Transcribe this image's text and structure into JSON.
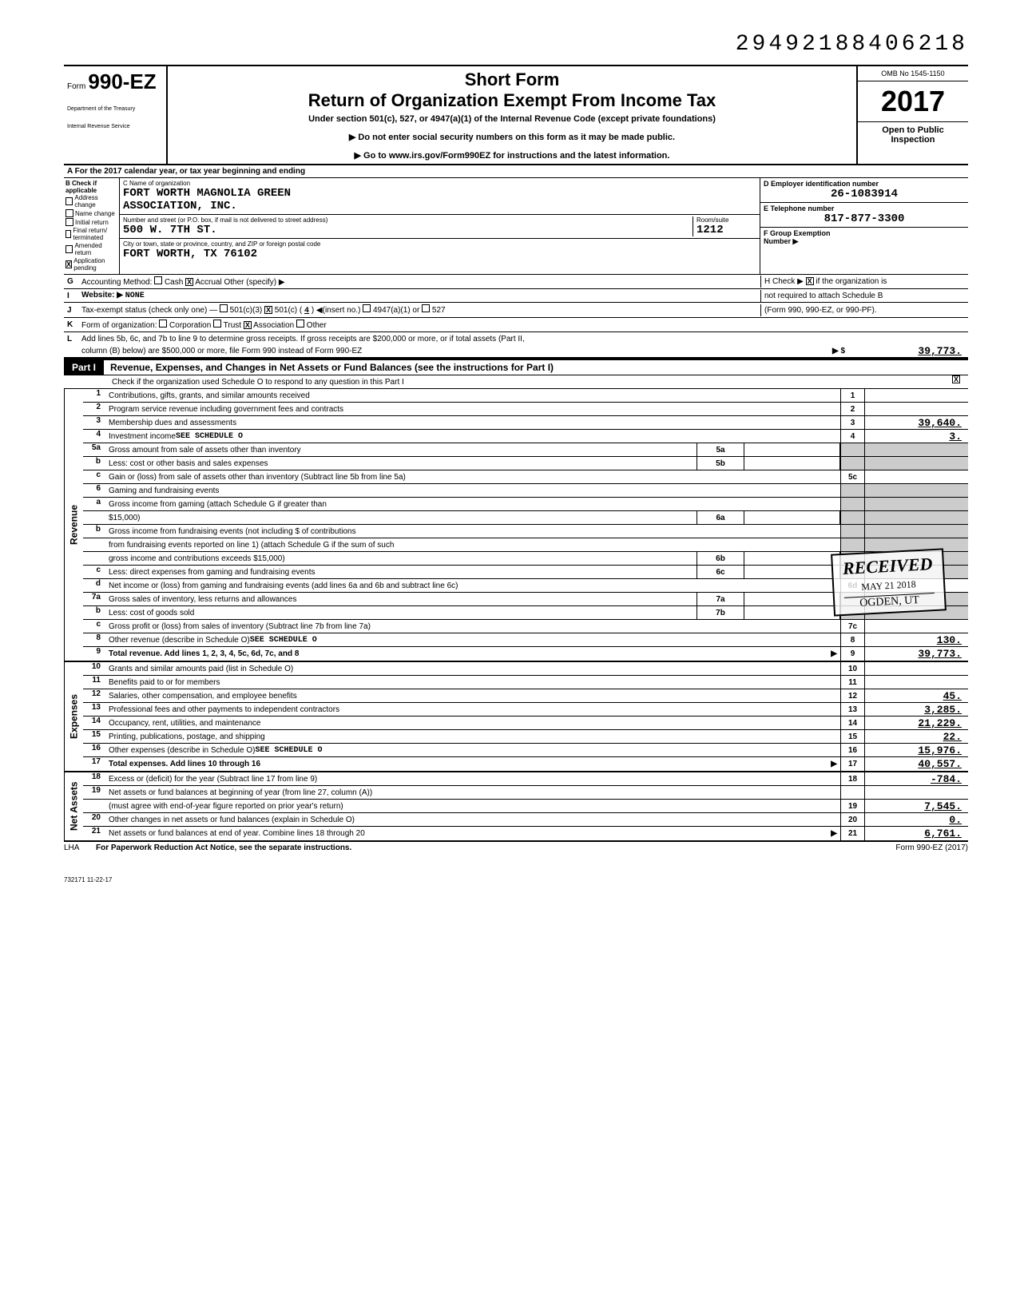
{
  "doc_number": "29492188406218",
  "form": {
    "word": "Form",
    "number": "990-EZ",
    "dept1": "Department of the Treasury",
    "dept2": "Internal Revenue Service"
  },
  "header": {
    "short_form": "Short Form",
    "title": "Return of Organization Exempt From Income Tax",
    "subtitle": "Under section 501(c), 527, or 4947(a)(1) of the Internal Revenue Code (except private foundations)",
    "note1": "▶ Do not enter social security numbers on this form as it may be made public.",
    "note2": "▶ Go to www.irs.gov/Form990EZ for instructions and the latest information.",
    "omb": "OMB No 1545-1150",
    "year": "2017",
    "public1": "Open to Public",
    "public2": "Inspection"
  },
  "row_a": "A  For the 2017 calendar year, or tax year beginning                                                                  and ending",
  "col_b": {
    "header": "B Check if applicable",
    "items": [
      "Address change",
      "Name change",
      "Initial return",
      "Final return/ terminated",
      "Amended return",
      "Application pending"
    ],
    "checked_idx": 5
  },
  "col_c": {
    "name_label": "C Name of organization",
    "name1": "FORT WORTH MAGNOLIA GREEN",
    "name2": "ASSOCIATION, INC.",
    "addr_label": "Number and street (or P.O. box, if mail is not delivered to street address)",
    "room_label": "Room/suite",
    "addr": "500 W. 7TH ST.",
    "room": "1212",
    "city_label": "City or town, state or province, country, and ZIP or foreign postal code",
    "city": "FORT WORTH, TX   76102"
  },
  "col_d": {
    "ein_label": "D Employer identification number",
    "ein": "26-1083914",
    "phone_label": "E  Telephone number",
    "phone": "817-877-3300",
    "group_label": "F Group Exemption",
    "group_label2": "Number ▶"
  },
  "line_g": {
    "letter": "G",
    "label": "Accounting Method:",
    "cash": "Cash",
    "accrual": "Accrual",
    "other": "Other (specify) ▶",
    "h_label": "H Check ▶",
    "h_text": "if the organization is"
  },
  "line_i": {
    "letter": "I",
    "label": "Website: ▶",
    "value": "NONE",
    "h_cont": "not required to attach Schedule B"
  },
  "line_j": {
    "letter": "J",
    "label": "Tax-exempt status (check only one) —",
    "opt1": "501(c)(3)",
    "opt2": "501(c) (",
    "opt2_num": "4",
    "opt2_after": ") ◀(insert no.)",
    "opt3": "4947(a)(1) or",
    "opt4": "527",
    "h_cont": "(Form 990, 990-EZ, or 990-PF)."
  },
  "line_k": {
    "letter": "K",
    "label": "Form of organization:",
    "opts": [
      "Corporation",
      "Trust",
      "Association",
      "Other"
    ],
    "checked_idx": 2
  },
  "line_l": {
    "letter": "L",
    "text1": "Add lines 5b, 6c, and 7b to line 9 to determine gross receipts. If gross receipts are $200,000 or more, or if total assets (Part II,",
    "text2": "column (B) below) are $500,000 or more, file Form 990 instead of Form 990-EZ",
    "arrow": "▶  $",
    "amount": "39,773."
  },
  "part1": {
    "label": "Part I",
    "title": "Revenue, Expenses, and Changes in Net Assets or Fund Balances (see the instructions for Part I)",
    "check_text": "Check if the organization used Schedule O to respond to any question in this Part I",
    "checked": "X"
  },
  "revenue": {
    "side": "Revenue",
    "rows": [
      {
        "num": "1",
        "desc": "Contributions, gifts, grants, and similar amounts received",
        "ln": "1",
        "amt": ""
      },
      {
        "num": "2",
        "desc": "Program service revenue including government fees and contracts",
        "ln": "2",
        "amt": ""
      },
      {
        "num": "3",
        "desc": "Membership dues and assessments",
        "ln": "3",
        "amt": "39,640."
      },
      {
        "num": "4",
        "desc": "Investment income",
        "sched": "SEE SCHEDULE O",
        "ln": "4",
        "amt": "3."
      },
      {
        "num": "5a",
        "desc": "Gross amount from sale of assets other than inventory",
        "sub": "5a"
      },
      {
        "num": "b",
        "desc": "Less: cost or other basis and sales expenses",
        "sub": "5b"
      },
      {
        "num": "c",
        "desc": "Gain or (loss) from sale of assets other than inventory (Subtract line 5b from line 5a)",
        "ln": "5c",
        "amt": ""
      },
      {
        "num": "6",
        "desc": "Gaming and fundraising events"
      },
      {
        "num": "a",
        "desc": "Gross income from gaming (attach Schedule G if greater than"
      },
      {
        "num": "",
        "desc": "$15,000)",
        "sub": "6a"
      },
      {
        "num": "b",
        "desc": "Gross income from fundraising events (not including $                              of contributions"
      },
      {
        "num": "",
        "desc": "from fundraising events reported on line 1) (attach Schedule G if the sum of such"
      },
      {
        "num": "",
        "desc": "gross income and contributions exceeds $15,000)",
        "sub": "6b"
      },
      {
        "num": "c",
        "desc": "Less: direct expenses from gaming and fundraising events",
        "sub": "6c"
      },
      {
        "num": "d",
        "desc": "Net income or (loss) from gaming and fundraising events (add lines 6a and 6b and subtract line 6c)",
        "ln": "6d",
        "amt": ""
      },
      {
        "num": "7a",
        "desc": "Gross sales of inventory, less returns and allowances",
        "sub": "7a"
      },
      {
        "num": "b",
        "desc": "Less: cost of goods sold",
        "sub": "7b"
      },
      {
        "num": "c",
        "desc": "Gross profit or (loss) from sales of inventory (Subtract line 7b from line 7a)",
        "ln": "7c",
        "amt": ""
      },
      {
        "num": "8",
        "desc": "Other revenue (describe in Schedule O)",
        "sched": "SEE SCHEDULE O",
        "ln": "8",
        "amt": "130."
      },
      {
        "num": "9",
        "desc": "Total revenue. Add lines 1, 2, 3, 4, 5c, 6d, 7c, and 8",
        "arrow": "▶",
        "ln": "9",
        "amt": "39,773.",
        "bold": true
      }
    ]
  },
  "expenses": {
    "side": "Expenses",
    "rows": [
      {
        "num": "10",
        "desc": "Grants and similar amounts paid (list in Schedule O)",
        "ln": "10",
        "amt": ""
      },
      {
        "num": "11",
        "desc": "Benefits paid to or for members",
        "ln": "11",
        "amt": ""
      },
      {
        "num": "12",
        "desc": "Salaries, other compensation, and employee benefits",
        "ln": "12",
        "amt": "45."
      },
      {
        "num": "13",
        "desc": "Professional fees and other payments to independent contractors",
        "ln": "13",
        "amt": "3,285."
      },
      {
        "num": "14",
        "desc": "Occupancy, rent, utilities, and maintenance",
        "ln": "14",
        "amt": "21,229."
      },
      {
        "num": "15",
        "desc": "Printing, publications, postage, and shipping",
        "ln": "15",
        "amt": "22."
      },
      {
        "num": "16",
        "desc": "Other expenses (describe in Schedule O)",
        "sched": "SEE SCHEDULE O",
        "ln": "16",
        "amt": "15,976."
      },
      {
        "num": "17",
        "desc": "Total expenses. Add lines 10 through 16",
        "arrow": "▶",
        "ln": "17",
        "amt": "40,557.",
        "bold": true
      }
    ]
  },
  "netassets": {
    "side": "Net Assets",
    "rows": [
      {
        "num": "18",
        "desc": "Excess or (deficit) for the year (Subtract line 17 from line 9)",
        "ln": "18",
        "amt": "-784."
      },
      {
        "num": "19",
        "desc": "Net assets or fund balances at beginning of year (from line 27, column (A))",
        "ln": "",
        "amt": ""
      },
      {
        "num": "",
        "desc": "(must agree with end-of-year figure reported on prior year's return)",
        "ln": "19",
        "amt": "7,545."
      },
      {
        "num": "20",
        "desc": "Other changes in net assets or fund balances (explain in Schedule O)",
        "ln": "20",
        "amt": "0."
      },
      {
        "num": "21",
        "desc": "Net assets or fund balances at end of year. Combine lines 18 through 20",
        "arrow": "▶",
        "ln": "21",
        "amt": "6,761."
      }
    ]
  },
  "stamp": {
    "rcv": "RECEIVED",
    "date": "MAY 21 2018",
    "loc": "OGDEN, UT"
  },
  "footer": {
    "lha": "LHA",
    "left": "For Paperwork Reduction Act Notice, see the separate instructions.",
    "right": "Form 990-EZ (2017)",
    "code": "732171  11-22-17"
  }
}
